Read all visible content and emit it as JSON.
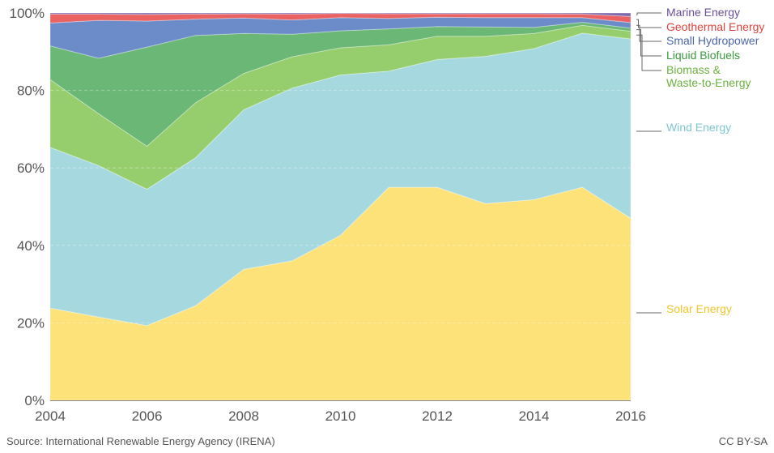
{
  "chart_data": {
    "type": "area",
    "stacked": true,
    "percent": true,
    "x": [
      2004,
      2005,
      2006,
      2007,
      2008,
      2009,
      2010,
      2011,
      2012,
      2013,
      2014,
      2015,
      2016
    ],
    "xticks": [
      2004,
      2006,
      2008,
      2010,
      2012,
      2014,
      2016
    ],
    "yticks": [
      "0%",
      "20%",
      "40%",
      "60%",
      "80%",
      "100%"
    ],
    "ylim": [
      0,
      100
    ],
    "grid": true,
    "legend_position": "right",
    "series": [
      {
        "name": "Solar Energy",
        "color": "#fde27a",
        "label_color": "#f0c52e",
        "values": [
          23.8,
          21.5,
          19.3,
          24.4,
          33.8,
          36.0,
          42.6,
          55.0,
          55.0,
          50.8,
          51.8,
          55.0,
          47.0
        ]
      },
      {
        "name": "Wind Energy",
        "color": "#a6d9df",
        "label_color": "#7fc6d1",
        "values": [
          41.5,
          39.1,
          35.2,
          38.2,
          41.2,
          44.6,
          41.4,
          30.0,
          33.0,
          38.0,
          39.0,
          39.8,
          46.3
        ]
      },
      {
        "name": "Biomass & Waste-to-Energy",
        "label_lines": [
          "Biomass &",
          "Waste-to-Energy"
        ],
        "color": "#96ce6e",
        "label_color": "#6ab23f",
        "values": [
          17.5,
          13.4,
          11.1,
          14.2,
          9.4,
          8.1,
          7.0,
          6.8,
          6.0,
          5.2,
          3.9,
          2.0,
          2.0
        ]
      },
      {
        "name": "Liquid Biofuels",
        "color": "#6bb776",
        "label_color": "#3a9a3f",
        "values": [
          8.7,
          14.3,
          25.6,
          17.4,
          10.3,
          5.8,
          4.4,
          4.1,
          2.5,
          2.4,
          1.6,
          0.8,
          0.8
        ]
      },
      {
        "name": "Small Hydropower",
        "color": "#6b8cc9",
        "label_color": "#4a66ad",
        "values": [
          5.9,
          9.8,
          6.7,
          4.2,
          4.0,
          3.7,
          3.4,
          2.7,
          2.4,
          2.4,
          2.5,
          1.2,
          1.4
        ]
      },
      {
        "name": "Geothermal Energy",
        "color": "#ea6262",
        "label_color": "#d9443d",
        "values": [
          2.3,
          1.6,
          1.7,
          1.3,
          1.1,
          1.5,
          1.1,
          1.2,
          0.9,
          1.0,
          1.0,
          0.9,
          1.6
        ]
      },
      {
        "name": "Marine Energy",
        "color": "#7e69ad",
        "label_color": "#6a4f9a",
        "values": [
          0.3,
          0.3,
          0.4,
          0.3,
          0.2,
          0.3,
          0.1,
          0.2,
          0.2,
          0.2,
          0.2,
          0.3,
          0.9
        ]
      }
    ]
  },
  "footer": {
    "source": "Source: International Renewable Energy Agency (IRENA)",
    "license": "CC BY-SA"
  }
}
